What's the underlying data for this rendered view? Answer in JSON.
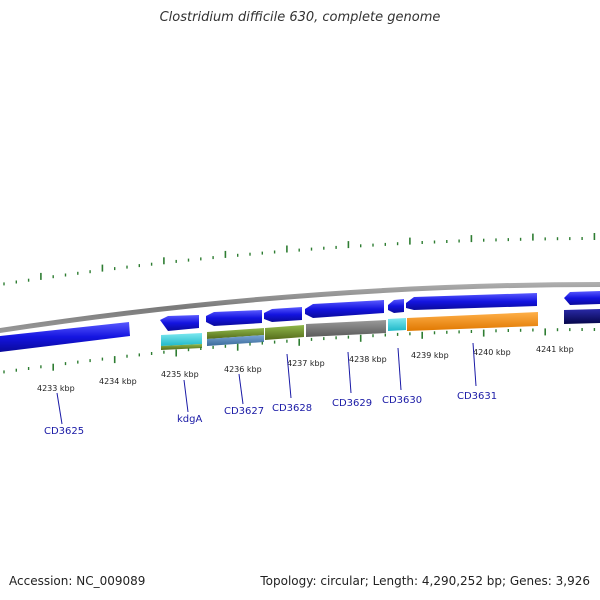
{
  "title": "Clostridium difficile 630, complete genome",
  "accession_text": "Accession: NC_009089",
  "topology_text": "Topology: circular; Length: 4,290,252 bp; Genes: 3,926",
  "colors": {
    "backbone": "#8a8a8a",
    "tick": "#2e7d32",
    "tick_label": "#222222",
    "gene_label": "#1a1aa6",
    "leader": "#1a1aa6"
  },
  "kbp_labels": [
    "4233 kbp",
    "4234 kbp",
    "4235 kbp",
    "4236 kbp",
    "4237 kbp",
    "4238 kbp",
    "4239 kbp",
    "4240 kbp",
    "4241 kbp"
  ],
  "genes": [
    {
      "label": "CD3625"
    },
    {
      "label": "kdgA"
    },
    {
      "label": "CD3627"
    },
    {
      "label": "CD3628"
    },
    {
      "label": "CD3629"
    },
    {
      "label": "CD3630"
    },
    {
      "label": "CD3631"
    }
  ],
  "feature_colors": [
    "#1414e0",
    "#2ac8d8",
    "#6b8e23",
    "#4682b4",
    "#707070",
    "#ff8c00",
    "#0a0a7a"
  ]
}
